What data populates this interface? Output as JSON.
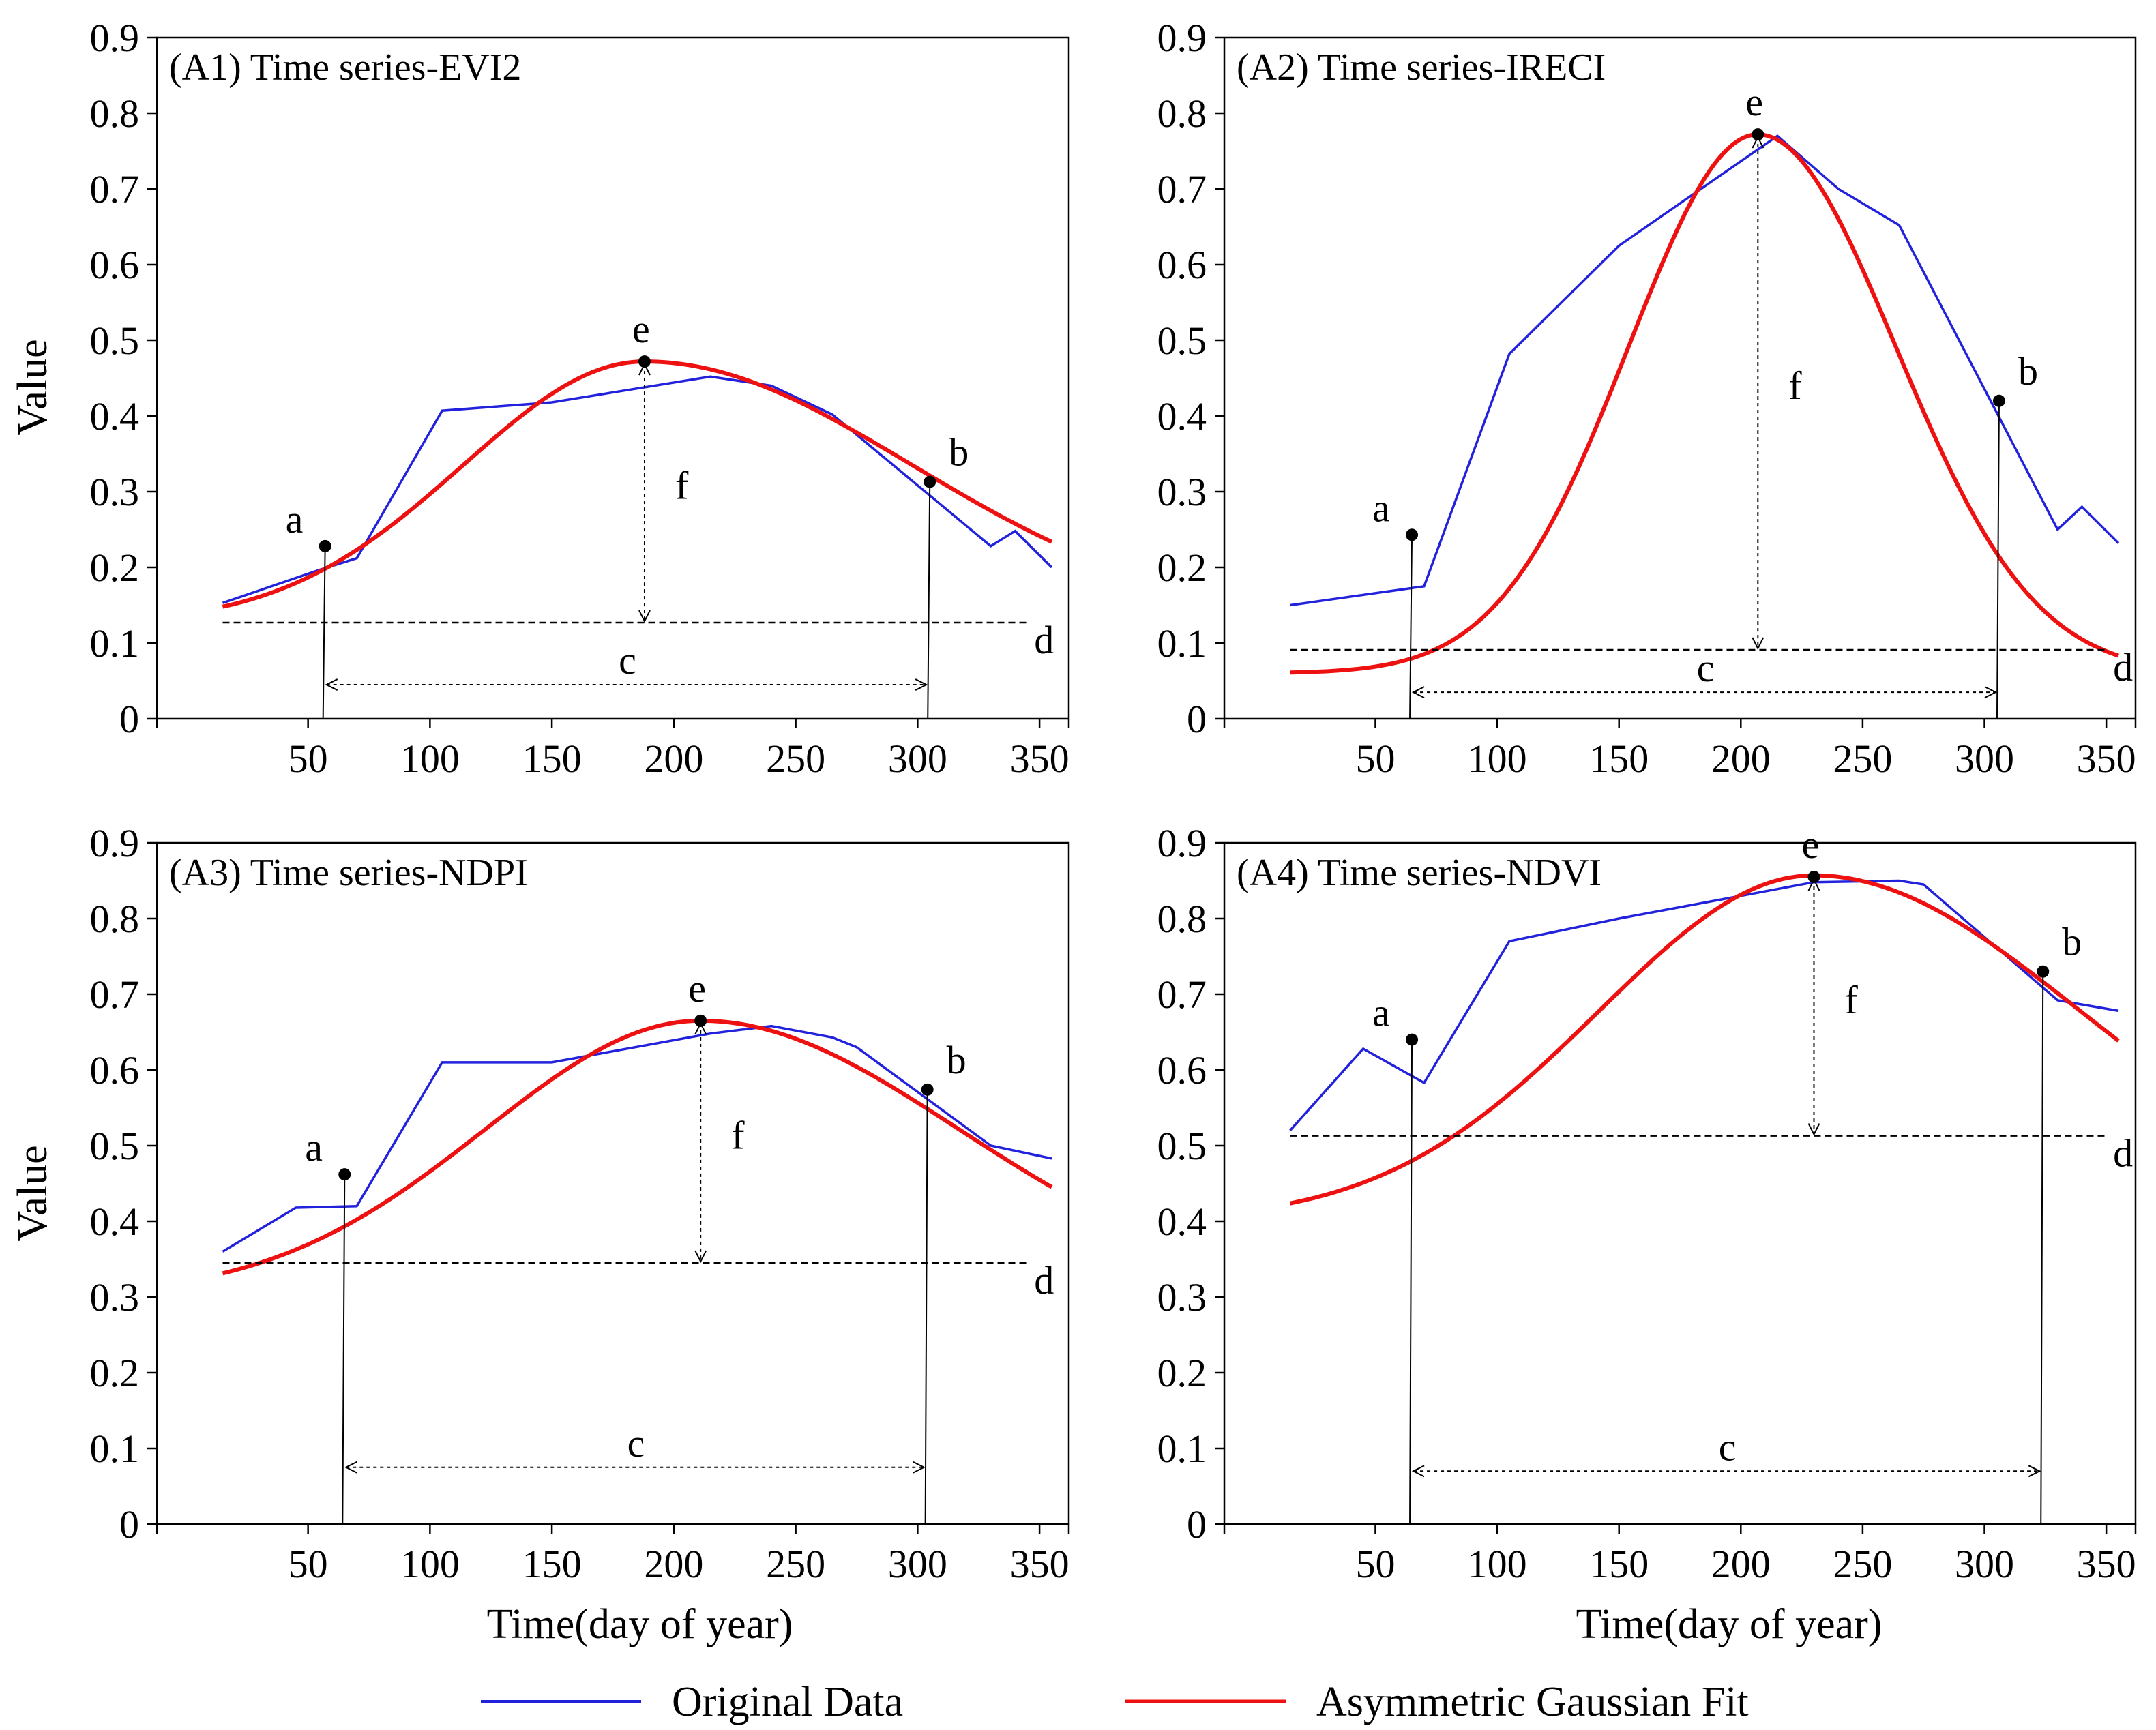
{
  "legend": {
    "original_label": "Original Data",
    "fit_label": "Asymmetric Gaussian Fit",
    "original_color": "#2222dd",
    "fit_color": "#ee1111"
  },
  "axis": {
    "ylabel": "Value",
    "xlabel": "Time(day of year)"
  },
  "chart_data": [
    {
      "type": "line",
      "title": "(A1) Time series-EVI2",
      "xlabel": "",
      "ylabel": "Value",
      "xlim": [
        -12,
        362
      ],
      "ylim": [
        0,
        0.9
      ],
      "xticks": [
        "50",
        "100",
        "150",
        "200",
        "250",
        "300",
        "350"
      ],
      "yticks": [
        "0",
        "0.1",
        "0.2",
        "0.3",
        "0.4",
        "0.5",
        "0.6",
        "0.7",
        "0.8",
        "0.9"
      ],
      "series": [
        {
          "name": "Original Data",
          "x": [
            15,
            55,
            70,
            105,
            150,
            215,
            240,
            265,
            330,
            340,
            355
          ],
          "y": [
            0.153,
            0.197,
            0.212,
            0.407,
            0.418,
            0.452,
            0.44,
            0.402,
            0.228,
            0.248,
            0.2
          ]
        },
        {
          "name": "Asymmetric Gaussian Fit",
          "base": 0.125,
          "amp": 0.347,
          "peak_x": 188,
          "width_left": 105,
          "width_right": 155,
          "x_range": [
            15,
            355
          ]
        }
      ],
      "points": [
        {
          "label": "a",
          "x": 57,
          "y": 0.228
        },
        {
          "label": "e",
          "x": 188,
          "y": 0.472
        },
        {
          "label": "b",
          "x": 305,
          "y": 0.313
        }
      ],
      "d_label": "d",
      "c_label": "c",
      "f_label": "f",
      "baseline": 0.127,
      "baseline_x": [
        15,
        345
      ],
      "c_y": 0.045
    },
    {
      "type": "line",
      "title": "(A2) Time series-IRECI",
      "xlabel": "",
      "ylabel": "",
      "xlim": [
        -12,
        362
      ],
      "ylim": [
        0,
        0.9
      ],
      "xticks": [
        "50",
        "100",
        "150",
        "200",
        "250",
        "300",
        "350"
      ],
      "yticks": [
        "0",
        "0.1",
        "0.2",
        "0.3",
        "0.4",
        "0.5",
        "0.6",
        "0.7",
        "0.8",
        "0.9"
      ],
      "series": [
        {
          "name": "Original Data",
          "x": [
            15,
            70,
            105,
            150,
            215,
            240,
            265,
            330,
            340,
            355
          ],
          "y": [
            0.15,
            0.175,
            0.482,
            0.625,
            0.77,
            0.7,
            0.652,
            0.25,
            0.28,
            0.232
          ]
        },
        {
          "name": "Asymmetric Gaussian Fit",
          "base": 0.06,
          "amp": 0.712,
          "peak_x": 207,
          "width_left": 75,
          "width_right": 80,
          "x_range": [
            15,
            355
          ]
        }
      ],
      "points": [
        {
          "label": "a",
          "x": 65,
          "y": 0.243
        },
        {
          "label": "e",
          "x": 207,
          "y": 0.772
        },
        {
          "label": "b",
          "x": 306,
          "y": 0.42
        }
      ],
      "d_label": "d",
      "c_label": "c",
      "f_label": "f",
      "baseline": 0.091,
      "baseline_x": [
        15,
        350
      ],
      "c_y": 0.035
    },
    {
      "type": "line",
      "title": "(A3) Time series-NDPI",
      "xlabel": "Time(day of year)",
      "ylabel": "Value",
      "xlim": [
        -12,
        362
      ],
      "ylim": [
        0,
        0.9
      ],
      "xticks": [
        "50",
        "100",
        "150",
        "200",
        "250",
        "300",
        "350"
      ],
      "yticks": [
        "0",
        "0.1",
        "0.2",
        "0.3",
        "0.4",
        "0.5",
        "0.6",
        "0.7",
        "0.8",
        "0.9"
      ],
      "series": [
        {
          "name": "Original Data",
          "x": [
            15,
            45,
            70,
            105,
            150,
            215,
            240,
            265,
            275,
            330,
            355
          ],
          "y": [
            0.36,
            0.418,
            0.42,
            0.61,
            0.61,
            0.648,
            0.658,
            0.643,
            0.63,
            0.5,
            0.483
          ]
        },
        {
          "name": "Asymmetric Gaussian Fit",
          "base": 0.3,
          "amp": 0.365,
          "peak_x": 211,
          "width_left": 125,
          "width_right": 150,
          "x_range": [
            15,
            355
          ]
        }
      ],
      "points": [
        {
          "label": "a",
          "x": 65,
          "y": 0.462
        },
        {
          "label": "e",
          "x": 211,
          "y": 0.665
        },
        {
          "label": "b",
          "x": 304,
          "y": 0.574
        }
      ],
      "d_label": "d",
      "c_label": "c",
      "f_label": "f",
      "baseline": 0.345,
      "baseline_x": [
        15,
        345
      ],
      "c_y": 0.075
    },
    {
      "type": "line",
      "title": "(A4) Time series-NDVI",
      "xlabel": "Time(day of year)",
      "ylabel": "",
      "xlim": [
        -12,
        362
      ],
      "ylim": [
        0,
        0.9
      ],
      "xticks": [
        "50",
        "100",
        "150",
        "200",
        "250",
        "300",
        "350"
      ],
      "yticks": [
        "0",
        "0.1",
        "0.2",
        "0.3",
        "0.4",
        "0.5",
        "0.6",
        "0.7",
        "0.8",
        "0.9"
      ],
      "series": [
        {
          "name": "Original Data",
          "x": [
            15,
            45,
            70,
            105,
            150,
            230,
            265,
            275,
            330,
            355
          ],
          "y": [
            0.52,
            0.628,
            0.583,
            0.77,
            0.8,
            0.848,
            0.85,
            0.845,
            0.692,
            0.678
          ]
        },
        {
          "name": "Asymmetric Gaussian Fit",
          "base": 0.4,
          "amp": 0.457,
          "peak_x": 230,
          "width_left": 125,
          "width_right": 155,
          "x_range": [
            15,
            355
          ]
        }
      ],
      "points": [
        {
          "label": "a",
          "x": 65,
          "y": 0.64
        },
        {
          "label": "e",
          "x": 230,
          "y": 0.855
        },
        {
          "label": "b",
          "x": 324,
          "y": 0.73
        }
      ],
      "d_label": "d",
      "c_label": "c",
      "f_label": "f",
      "baseline": 0.513,
      "baseline_x": [
        15,
        350
      ],
      "c_y": 0.07
    }
  ]
}
